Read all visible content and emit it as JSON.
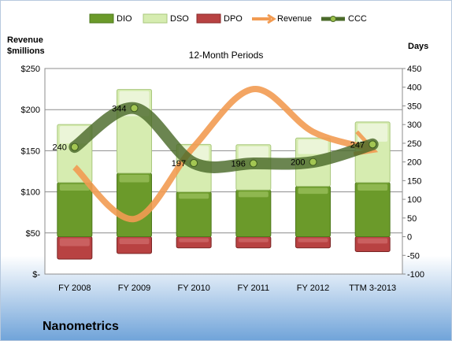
{
  "company": "Nanometrics",
  "chart_data": {
    "type": "bar",
    "title": "12-Month Periods",
    "categories": [
      "FY 2008",
      "FY 2009",
      "FY 2010",
      "FY 2011",
      "FY 2012",
      "TTM 3-2013"
    ],
    "left_axis": {
      "label_line1": "Revenue",
      "label_line2": "$millions",
      "ylim": [
        0,
        250
      ],
      "ticks": [
        0,
        50,
        100,
        150,
        200,
        250
      ],
      "tick_labels": [
        "$-",
        "$50",
        "$100",
        "$150",
        "$200",
        "$250"
      ]
    },
    "right_axis": {
      "label": "Days",
      "ylim": [
        -100,
        450
      ],
      "ticks": [
        -100,
        -50,
        0,
        50,
        100,
        150,
        200,
        250,
        300,
        350,
        400,
        450
      ]
    },
    "series": [
      {
        "name": "DIO",
        "axis": "right",
        "values": [
          145,
          170,
          120,
          125,
          135,
          145
        ]
      },
      {
        "name": "DSO",
        "axis": "right",
        "values": [
          155,
          224,
          127,
          121,
          129,
          162
        ]
      },
      {
        "name": "DPO",
        "axis": "right",
        "values": [
          -60,
          -45,
          -30,
          -30,
          -30,
          -40
        ]
      },
      {
        "name": "Revenue",
        "axis": "left",
        "values": [
          130,
          67,
          155,
          225,
          173,
          152
        ]
      },
      {
        "name": "CCC",
        "axis": "right",
        "values": [
          240,
          344,
          197,
          196,
          200,
          247
        ]
      }
    ],
    "ccc_labels": [
      "240",
      "344",
      "197",
      "196",
      "200",
      "247"
    ],
    "colors": {
      "DIO": "#6b9a2a",
      "DSO": "#d6ecb0",
      "DPO": "#b84242",
      "Revenue": "#f29b52",
      "CCC": "#4b6a2a",
      "plot_bg": "#ffffff",
      "page_bg_top": "#ffffff",
      "page_bg_bottom": "#6fa3d9"
    },
    "legend_position": "top",
    "grid": true
  }
}
